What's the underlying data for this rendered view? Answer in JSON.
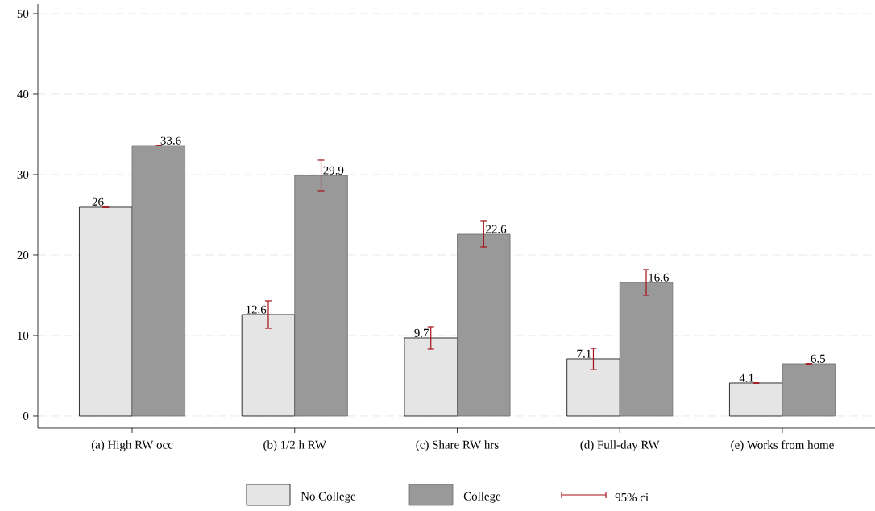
{
  "chart_data": {
    "type": "bar",
    "categories": [
      "(a) High RW occ",
      "(b) 1/2 h RW",
      "(c) Share RW hrs",
      "(d) Full-day RW",
      "(e) Works from home"
    ],
    "series": [
      {
        "name": "No College",
        "color": "#e5e5e5",
        "values": [
          26,
          12.6,
          9.7,
          7.1,
          4.1
        ],
        "errors": [
          0,
          1.7,
          1.4,
          1.3,
          0
        ]
      },
      {
        "name": "College",
        "color": "#999999",
        "values": [
          33.6,
          29.9,
          22.6,
          16.6,
          6.5
        ],
        "errors": [
          0,
          1.9,
          1.6,
          1.6,
          0
        ]
      }
    ],
    "ylim": [
      -1.5,
      51.2
    ],
    "yticks": [
      0,
      10,
      20,
      30,
      40,
      50
    ],
    "grid": "y",
    "legend": "bottom",
    "data_labels": true,
    "annotations": [
      "95% ci"
    ]
  }
}
